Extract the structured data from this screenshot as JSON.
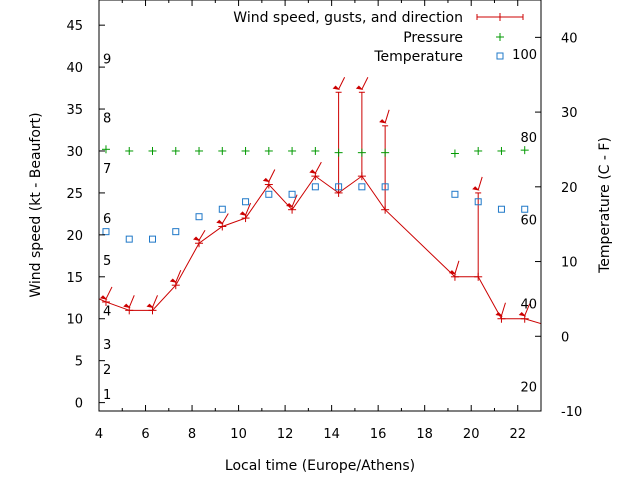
{
  "chart_data": {
    "type": "line",
    "xlabel": "Local time (Europe/Athens)",
    "ylabel": "Wind speed (kt - Beaufort)",
    "y2label": "Temperature (C - F)",
    "xlim": [
      4,
      23
    ],
    "ylim": [
      -1,
      48
    ],
    "y2lim": [
      -10,
      45
    ],
    "x_ticks": [
      4,
      6,
      8,
      10,
      12,
      14,
      16,
      18,
      20,
      22
    ],
    "y_ticks": [
      0,
      5,
      10,
      15,
      20,
      25,
      30,
      35,
      40,
      45
    ],
    "y2_ticks": [
      -10,
      0,
      10,
      20,
      30,
      40
    ],
    "beaufort_labels": [
      {
        "label": "1",
        "y": 1
      },
      {
        "label": "2",
        "y": 4
      },
      {
        "label": "3",
        "y": 7
      },
      {
        "label": "4",
        "y": 11
      },
      {
        "label": "5",
        "y": 17
      },
      {
        "label": "6",
        "y": 22
      },
      {
        "label": "7",
        "y": 28
      },
      {
        "label": "8",
        "y": 34
      },
      {
        "label": "9",
        "y": 41
      }
    ],
    "fahrenheit_labels": [
      {
        "label": "20",
        "t": -6.7
      },
      {
        "label": "40",
        "t": 4.4
      },
      {
        "label": "60",
        "t": 15.6
      },
      {
        "label": "80",
        "t": 26.7
      },
      {
        "label": "100",
        "t": 37.8
      }
    ],
    "legend": [
      {
        "name": "Wind speed, gusts, and direction",
        "color": "#cc0000",
        "marker": "line-plus"
      },
      {
        "name": "Pressure",
        "color": "#009900",
        "marker": "plus"
      },
      {
        "name": "Temperature",
        "color": "#1f78c8",
        "marker": "square"
      }
    ],
    "series": [
      {
        "name": "Wind speed, gusts, and direction",
        "color": "#cc0000",
        "points": [
          {
            "x": 3.5,
            "y": 13
          },
          {
            "x": 4.3,
            "y": 12,
            "gust": 12,
            "dir_end": [
              -6,
              -12
            ]
          },
          {
            "x": 5.3,
            "y": 11,
            "gust": 11,
            "dir_end": [
              -5,
              -12
            ]
          },
          {
            "x": 6.3,
            "y": 11,
            "gust": 11,
            "dir_end": [
              -5,
              -12
            ]
          },
          {
            "x": 7.3,
            "y": 14,
            "gust": 14,
            "dir_end": [
              -5,
              -12
            ]
          },
          {
            "x": 8.3,
            "y": 19,
            "gust": 19,
            "dir_end": [
              -6,
              -10
            ]
          },
          {
            "x": 9.3,
            "y": 21,
            "gust": 21,
            "dir_end": [
              -6,
              -10
            ]
          },
          {
            "x": 10.3,
            "y": 22,
            "gust": 22,
            "dir_end": [
              -5,
              -12
            ]
          },
          {
            "x": 11.3,
            "y": 26,
            "gust": 26,
            "dir_end": [
              -6,
              -12
            ]
          },
          {
            "x": 12.3,
            "y": 23,
            "gust": 23,
            "dir_end": [
              -5,
              -12
            ]
          },
          {
            "x": 13.3,
            "y": 27,
            "gust": 27,
            "dir_end": [
              -6,
              -11
            ]
          },
          {
            "x": 14.3,
            "y": 25,
            "gust": 37,
            "dir_end": [
              -6,
              -12
            ]
          },
          {
            "x": 15.3,
            "y": 27,
            "gust": 37,
            "dir_end": [
              -6,
              -12
            ]
          },
          {
            "x": 16.3,
            "y": 23,
            "gust": 33,
            "dir_end": [
              -4,
              -13
            ]
          },
          {
            "x": 19.3,
            "y": 15,
            "gust": 15,
            "dir_end": [
              -4,
              -13
            ]
          },
          {
            "x": 20.3,
            "y": 15,
            "gust": 25,
            "dir_end": [
              -4,
              -13
            ]
          },
          {
            "x": 21.3,
            "y": 10,
            "gust": 10,
            "dir_end": [
              -4,
              -13
            ]
          },
          {
            "x": 22.3,
            "y": 10,
            "gust": 10,
            "dir_end": [
              -5,
              -12
            ]
          },
          {
            "x": 23.5,
            "y": 9
          }
        ]
      },
      {
        "name": "Pressure",
        "color": "#009900",
        "points": [
          {
            "x": 4.3,
            "y": 30.2
          },
          {
            "x": 5.3,
            "y": 30
          },
          {
            "x": 6.3,
            "y": 30
          },
          {
            "x": 7.3,
            "y": 30
          },
          {
            "x": 8.3,
            "y": 30
          },
          {
            "x": 9.3,
            "y": 30
          },
          {
            "x": 10.3,
            "y": 30
          },
          {
            "x": 11.3,
            "y": 30
          },
          {
            "x": 12.3,
            "y": 30
          },
          {
            "x": 13.3,
            "y": 30
          },
          {
            "x": 14.3,
            "y": 29.8
          },
          {
            "x": 15.3,
            "y": 29.8
          },
          {
            "x": 16.3,
            "y": 29.8
          },
          {
            "x": 19.3,
            "y": 29.7
          },
          {
            "x": 20.3,
            "y": 30
          },
          {
            "x": 21.3,
            "y": 30
          },
          {
            "x": 22.3,
            "y": 30.1
          }
        ]
      },
      {
        "name": "Temperature",
        "color": "#1f78c8",
        "axis": "y2",
        "points": [
          {
            "x": 4.3,
            "y": 14
          },
          {
            "x": 5.3,
            "y": 13
          },
          {
            "x": 6.3,
            "y": 13
          },
          {
            "x": 7.3,
            "y": 14
          },
          {
            "x": 8.3,
            "y": 16
          },
          {
            "x": 9.3,
            "y": 17
          },
          {
            "x": 10.3,
            "y": 18
          },
          {
            "x": 11.3,
            "y": 19
          },
          {
            "x": 12.3,
            "y": 19
          },
          {
            "x": 13.3,
            "y": 20
          },
          {
            "x": 14.3,
            "y": 20
          },
          {
            "x": 15.3,
            "y": 20
          },
          {
            "x": 16.3,
            "y": 20
          },
          {
            "x": 19.3,
            "y": 19
          },
          {
            "x": 20.3,
            "y": 18
          },
          {
            "x": 21.3,
            "y": 17
          },
          {
            "x": 22.3,
            "y": 17
          }
        ]
      }
    ],
    "grid": false,
    "legend_position": "top-right"
  }
}
